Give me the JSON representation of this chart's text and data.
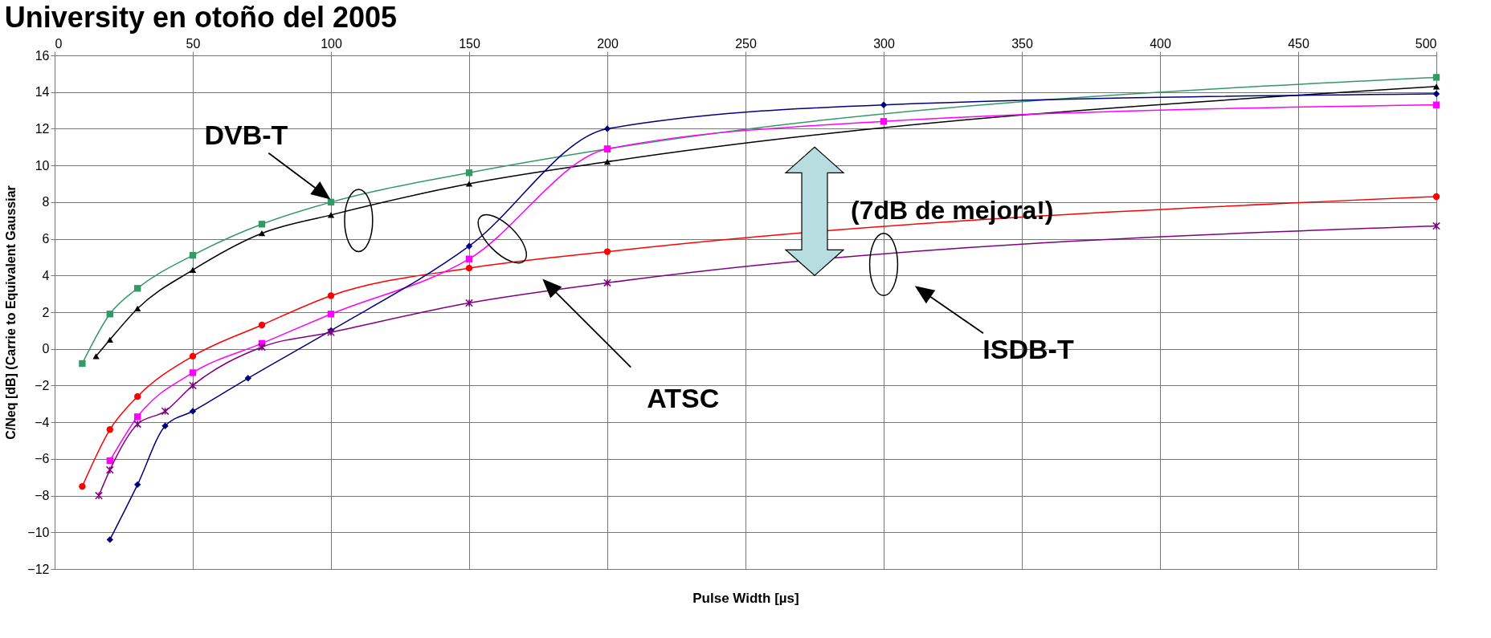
{
  "chart_data": {
    "type": "line",
    "title": "University en otoño del 2005",
    "xlabel": "Pulse Width [µs]",
    "ylabel": "C/Neq [dB] (Carrie to Equivalent Gaussiar",
    "xlim": [
      0,
      500
    ],
    "xticks": [
      0,
      50,
      100,
      150,
      200,
      250,
      300,
      350,
      400,
      450,
      500
    ],
    "ylim": [
      -12,
      16
    ],
    "yticks": [
      -12,
      -10,
      -8,
      -6,
      -4,
      -2,
      0,
      2,
      4,
      6,
      8,
      10,
      12,
      14,
      16
    ],
    "grid": true,
    "line_style": "solid",
    "series": [
      {
        "color": "#339966",
        "marker": "square",
        "x": [
          10,
          20,
          30,
          50,
          75,
          100,
          150,
          200,
          500
        ],
        "values": [
          -0.8,
          1.9,
          3.3,
          5.1,
          6.8,
          8.0,
          9.6,
          10.9,
          14.8
        ]
      },
      {
        "color": "#000000",
        "marker": "triangle",
        "x": [
          15,
          20,
          30,
          50,
          75,
          100,
          150,
          200,
          500
        ],
        "values": [
          -0.4,
          0.5,
          2.2,
          4.3,
          6.3,
          7.3,
          9.0,
          10.2,
          14.3
        ]
      },
      {
        "color": "#ff0000",
        "marker": "circle",
        "x": [
          10,
          20,
          30,
          50,
          75,
          100,
          150,
          200,
          500
        ],
        "values": [
          -7.5,
          -4.4,
          -2.6,
          -0.4,
          1.3,
          2.9,
          4.4,
          5.3,
          8.3
        ]
      },
      {
        "color": "#ff00ff",
        "marker": "square",
        "x": [
          20,
          30,
          50,
          75,
          100,
          150,
          200,
          300,
          500
        ],
        "values": [
          -6.1,
          -3.7,
          -1.3,
          0.3,
          1.9,
          4.9,
          10.9,
          12.4,
          13.3
        ]
      },
      {
        "color": "#000080",
        "marker": "diamond",
        "x": [
          20,
          30,
          40,
          50,
          70,
          100,
          150,
          200,
          300,
          500
        ],
        "values": [
          -10.4,
          -7.4,
          -4.2,
          -3.4,
          -1.6,
          1.0,
          5.6,
          12.0,
          13.3,
          13.9
        ]
      },
      {
        "color": "#800080",
        "marker": "cross",
        "x": [
          16,
          20,
          30,
          40,
          50,
          75,
          100,
          150,
          200,
          500
        ],
        "values": [
          -8.0,
          -6.6,
          -4.1,
          -3.4,
          -2.0,
          0.1,
          0.9,
          2.5,
          3.6,
          6.7
        ]
      }
    ],
    "annotations": [
      "DVB-T",
      "ATSC",
      "ISDB-T",
      "(7dB de mejora!)"
    ]
  }
}
